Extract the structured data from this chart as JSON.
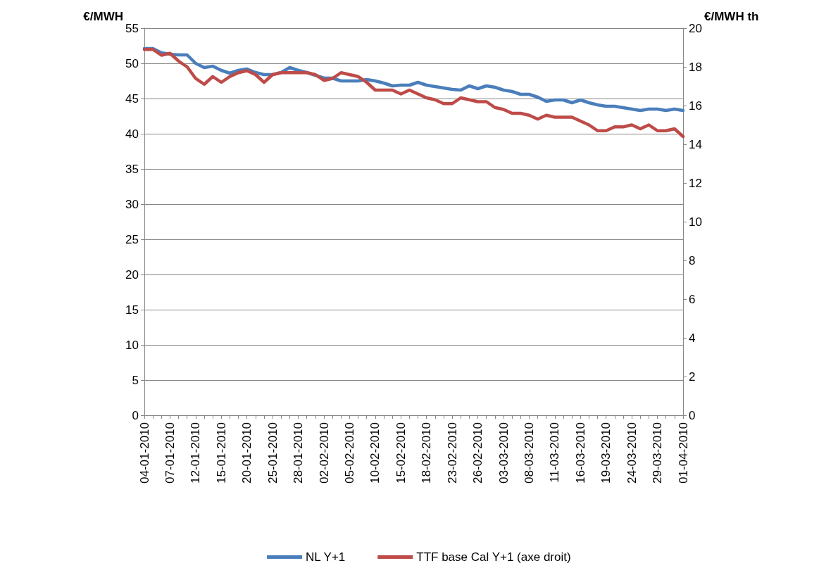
{
  "chart_data": {
    "type": "line",
    "ylabel": "€/MWH",
    "y2label": "€/MWH th",
    "categories": [
      "04-01-2010",
      null,
      null,
      "07-01-2010",
      null,
      null,
      "12-01-2010",
      null,
      null,
      "15-01-2010",
      null,
      null,
      "20-01-2010",
      null,
      null,
      "25-01-2010",
      null,
      null,
      "28-01-2010",
      null,
      null,
      "02-02-2010",
      null,
      null,
      "05-02-2010",
      null,
      null,
      "10-02-2010",
      null,
      null,
      "15-02-2010",
      null,
      null,
      "18-02-2010",
      null,
      null,
      "23-02-2010",
      null,
      null,
      "26-02-2010",
      null,
      null,
      "03-03-2010",
      null,
      null,
      "08-03-2010",
      null,
      null,
      "11-03-2010",
      null,
      null,
      "16-03-2010",
      null,
      null,
      "19-03-2010",
      null,
      null,
      "24-03-2010",
      null,
      null,
      "29-03-2010",
      null,
      null,
      "01-04-2010"
    ],
    "series": [
      {
        "name": "NL Y+1",
        "color": "#4a7ebb",
        "values": [
          52.1,
          52.1,
          51.5,
          51.3,
          51.2,
          51.2,
          50.0,
          49.4,
          49.6,
          49.0,
          48.6,
          49.0,
          49.2,
          48.7,
          48.4,
          48.4,
          48.7,
          49.4,
          49.0,
          48.7,
          48.3,
          47.9,
          47.9,
          47.5,
          47.5,
          47.5,
          47.7,
          47.5,
          47.2,
          46.8,
          46.9,
          46.9,
          47.3,
          46.9,
          46.7,
          46.5,
          46.3,
          46.2,
          46.8,
          46.4,
          46.8,
          46.6,
          46.2,
          46.0,
          45.6,
          45.6,
          45.2,
          44.6,
          44.8,
          44.8,
          44.4,
          44.8,
          44.4,
          44.1,
          43.9,
          43.9,
          43.7,
          43.5,
          43.3,
          43.5,
          43.5,
          43.3,
          43.5,
          43.3
        ]
      },
      {
        "name": "TTF base Cal Y+1 (axe droit)",
        "color": "#be4b48",
        "axis": "y2",
        "values": [
          18.9,
          18.9,
          18.6,
          18.7,
          18.3,
          18.0,
          17.4,
          17.1,
          17.5,
          17.2,
          17.5,
          17.7,
          17.8,
          17.6,
          17.2,
          17.6,
          17.7,
          17.7,
          17.7,
          17.7,
          17.6,
          17.3,
          17.4,
          17.7,
          17.6,
          17.5,
          17.2,
          16.8,
          16.8,
          16.8,
          16.6,
          16.8,
          16.6,
          16.4,
          16.3,
          16.1,
          16.1,
          16.4,
          16.3,
          16.2,
          16.2,
          15.9,
          15.8,
          15.6,
          15.6,
          15.5,
          15.3,
          15.5,
          15.4,
          15.4,
          15.4,
          15.2,
          15.0,
          14.7,
          14.7,
          14.9,
          14.9,
          15.0,
          14.8,
          15.0,
          14.7,
          14.7,
          14.8,
          14.4
        ]
      }
    ],
    "ylim": [
      0,
      55
    ],
    "yticks": [
      0,
      5,
      10,
      15,
      20,
      25,
      30,
      35,
      40,
      45,
      50,
      55
    ],
    "y2lim": [
      0,
      20
    ],
    "y2ticks": [
      0,
      2,
      4,
      6,
      8,
      10,
      12,
      14,
      16,
      18,
      20
    ],
    "grid": "y",
    "legend": "bottom",
    "marker": "none",
    "line_style": "solid"
  }
}
